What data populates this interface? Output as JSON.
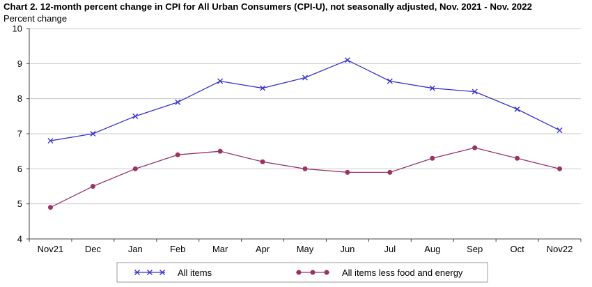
{
  "chart_data": {
    "type": "line",
    "title": "Chart 2. 12-month percent change in CPI for All Urban Consumers (CPI-U), not seasonally adjusted, Nov. 2021 - Nov. 2022",
    "ylabel": "Percent change",
    "xlabel": "",
    "categories": [
      "Nov21",
      "Dec",
      "Jan",
      "Feb",
      "Mar",
      "Apr",
      "May",
      "Jun",
      "Jul",
      "Aug",
      "Sep",
      "Oct",
      "Nov22"
    ],
    "ylim": [
      4,
      10
    ],
    "yticks": [
      4,
      5,
      6,
      7,
      8,
      9,
      10
    ],
    "grid": true,
    "legend_position": "bottom",
    "series": [
      {
        "name": "All items",
        "color": "#3333cc",
        "marker": "x",
        "values": [
          6.8,
          7.0,
          7.5,
          7.9,
          8.5,
          8.3,
          8.6,
          9.1,
          8.5,
          8.3,
          8.2,
          7.7,
          7.1
        ]
      },
      {
        "name": "All items less food and energy",
        "color": "#993366",
        "marker": "circle",
        "values": [
          4.9,
          5.5,
          6.0,
          6.4,
          6.5,
          6.2,
          6.0,
          5.9,
          5.9,
          6.3,
          6.6,
          6.3,
          6.0
        ]
      }
    ]
  }
}
